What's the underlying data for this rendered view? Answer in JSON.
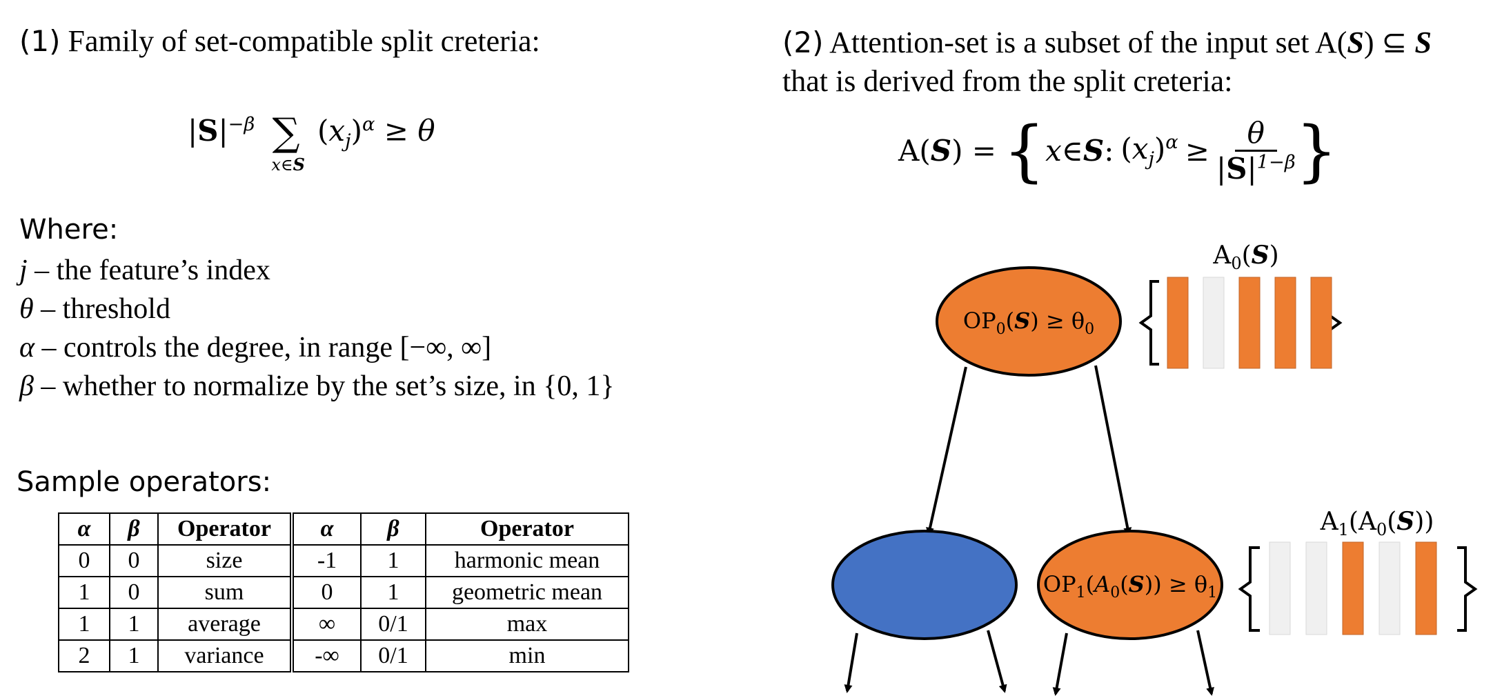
{
  "left": {
    "heading_num": "(1)",
    "heading_text": "Family of set-compatible split creteria:",
    "formula": {
      "set": "S",
      "neg_beta": "−β",
      "sum": "∑",
      "sum_sub": "x∈",
      "x": "x",
      "j": "j",
      "alpha": "α",
      "rel": "≥",
      "theta": "θ"
    },
    "where_label": "Where:",
    "defs": [
      {
        "sym": "j",
        "text": " – the feature’s index"
      },
      {
        "sym": "θ",
        "text": " – threshold"
      },
      {
        "sym": "α",
        "text": " – controls the degree, in range [−∞, ∞]"
      },
      {
        "sym": "β",
        "text": " – whether to normalize by the set’s size, in {0, 1}"
      }
    ],
    "sample_label": "Sample operators:",
    "table": {
      "headers": [
        "α",
        "β",
        "Operator",
        "α",
        "β",
        "Operator"
      ],
      "rows": [
        [
          "0",
          "0",
          "size",
          "-1",
          "1",
          "harmonic mean"
        ],
        [
          "1",
          "0",
          "sum",
          "0",
          "1",
          "geometric mean"
        ],
        [
          "1",
          "1",
          "average",
          "∞",
          "0/1",
          "max"
        ],
        [
          "2",
          "1",
          "variance",
          "-∞",
          "0/1",
          "min"
        ]
      ]
    }
  },
  "right": {
    "heading_num": "(2)",
    "heading_line1": "Attention-set is a subset of the input set A(",
    "heading_set": "S",
    "heading_subseteq": ") ⊆ ",
    "heading_line2": "that is derived from the split creteria:",
    "formula": {
      "lhs_A": "A(",
      "S": "S",
      "lhs_close": ") =",
      "brace_open": "{",
      "x": "x",
      "in": " ∈ ",
      "colon": ":",
      "xj": "x",
      "j": "j",
      "alpha": "α",
      "rel": "≥",
      "num": "θ",
      "den_pow": "1−β",
      "brace_close": "}"
    },
    "tree": {
      "root_label_op": "OP",
      "root_label_sub": "0",
      "root_label_mid": "(",
      "root_label_S": "S",
      "root_label_rel": ") ≥ θ",
      "root_label_tsub": "0",
      "child_label_op": "OP",
      "child_label_sub": "1",
      "child_label_A": "A",
      "child_label_Asub": "0",
      "child_label_S": "S",
      "child_label_rel": ")) ≥ θ",
      "child_label_tsub": "1",
      "set0_label_A": "A",
      "set0_label_sub": "0",
      "set0_label_S": "S",
      "set1_label_A1": "A",
      "set1_label_sub1": "1",
      "set1_label_A0": "A",
      "set1_label_sub0": "0",
      "set1_label_S": "S",
      "set0_bars": [
        "orange",
        "gray",
        "orange",
        "orange",
        "orange"
      ],
      "set1_bars": [
        "gray",
        "gray",
        "orange",
        "gray",
        "orange"
      ]
    },
    "colors": {
      "orange": "#ED7D31",
      "gray": "#F0F0F0",
      "blue": "#4472C4"
    }
  }
}
